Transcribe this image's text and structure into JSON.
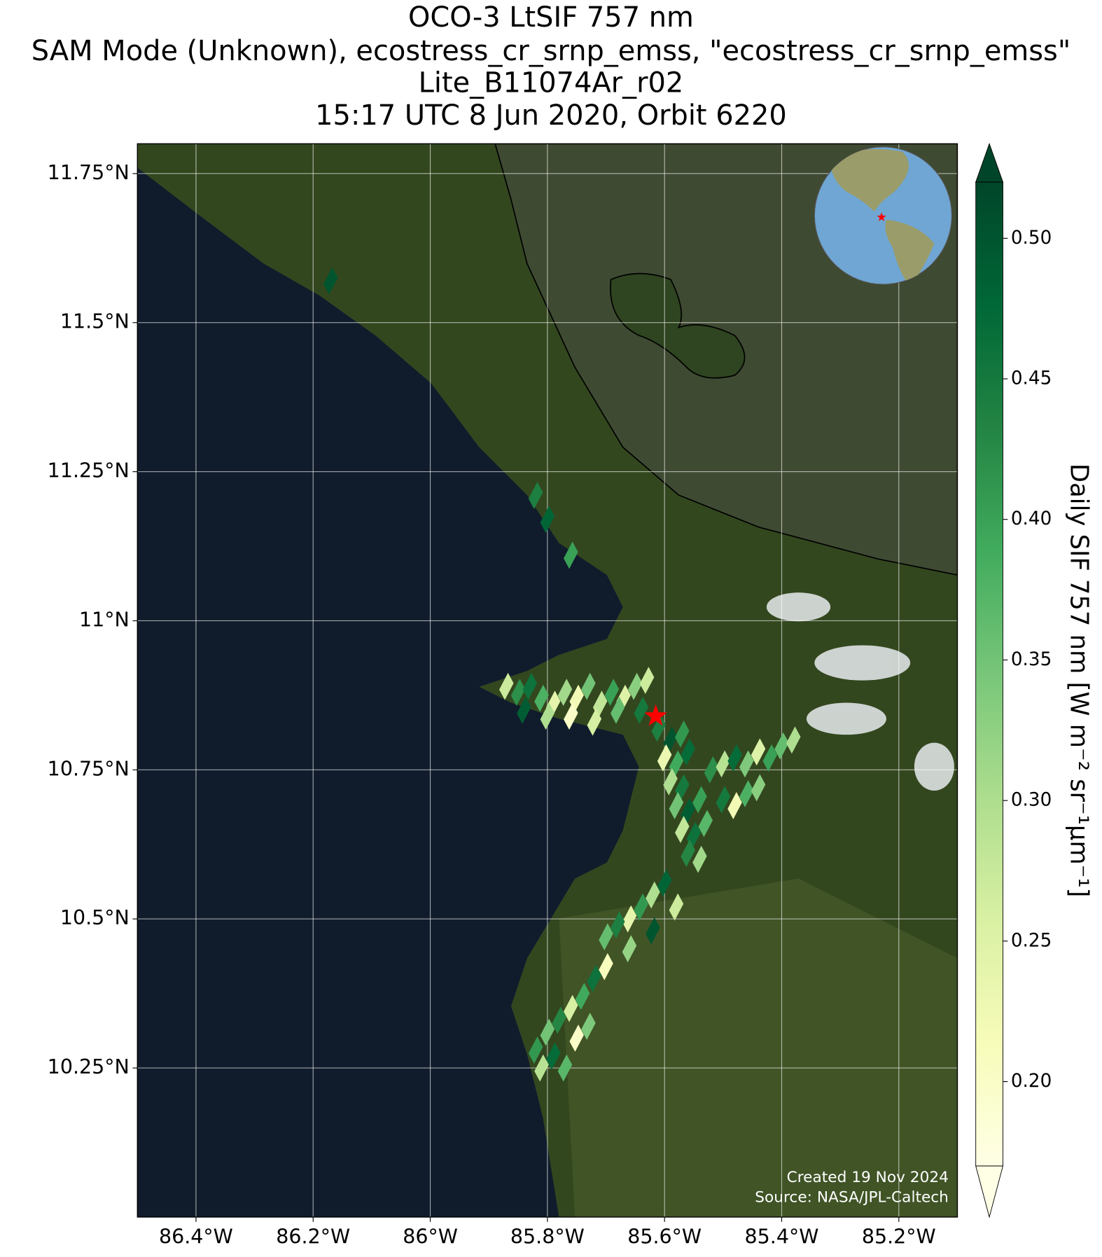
{
  "chart_data": {
    "type": "map",
    "title": [
      "OCO-3 LtSIF 757 nm",
      "SAM Mode (Unknown), ecostress_cr_srnp_emss, \"ecostress_cr_srnp_emss\"",
      "Lite_B11074Ar_r02",
      "15:17 UTC 8 Jun 2020, Orbit 6220"
    ],
    "xlim": [
      -86.5,
      -85.1
    ],
    "ylim": [
      10.0,
      11.8
    ],
    "xticks": [
      {
        "value": -86.4,
        "label": "86.4°W"
      },
      {
        "value": -86.2,
        "label": "86.2°W"
      },
      {
        "value": -86.0,
        "label": "86°W"
      },
      {
        "value": -85.8,
        "label": "85.8°W"
      },
      {
        "value": -85.6,
        "label": "85.6°W"
      },
      {
        "value": -85.4,
        "label": "85.4°W"
      },
      {
        "value": -85.2,
        "label": "85.2°W"
      }
    ],
    "yticks": [
      {
        "value": 10.25,
        "label": "10.25°N"
      },
      {
        "value": 10.5,
        "label": "10.5°N"
      },
      {
        "value": 10.75,
        "label": "10.75°N"
      },
      {
        "value": 11.0,
        "label": "11°N"
      },
      {
        "value": 11.25,
        "label": "11.25°N"
      },
      {
        "value": 11.5,
        "label": "11.5°N"
      },
      {
        "value": 11.75,
        "label": "11.75°N"
      }
    ],
    "grid": true,
    "colorbar_label": "Daily SIF 757 nm [W m⁻² sr⁻¹µm⁻¹]",
    "clim": [
      0.17,
      0.52
    ],
    "cticks": [
      {
        "value": 0.2,
        "label": "0.20"
      },
      {
        "value": 0.25,
        "label": "0.25"
      },
      {
        "value": 0.3,
        "label": "0.30"
      },
      {
        "value": 0.35,
        "label": "0.35"
      },
      {
        "value": 0.4,
        "label": "0.40"
      },
      {
        "value": 0.45,
        "label": "0.45"
      },
      {
        "value": 0.5,
        "label": "0.50"
      }
    ],
    "colormap": [
      "#ffffe5",
      "#f7fcb9",
      "#d9f0a3",
      "#addd8e",
      "#78c679",
      "#41ab5d",
      "#238443",
      "#006837",
      "#004529"
    ],
    "target": [
      -85.615,
      10.84
    ],
    "notes": [
      "Created 19 Nov 2024",
      "Source: NASA/JPL-Caltech"
    ],
    "points": [
      [
        -85.87,
        10.89,
        0.27
      ],
      [
        -85.85,
        10.88,
        0.42
      ],
      [
        -85.83,
        10.89,
        0.46
      ],
      [
        -85.81,
        10.87,
        0.38
      ],
      [
        -85.79,
        10.86,
        0.24
      ],
      [
        -85.77,
        10.88,
        0.31
      ],
      [
        -85.75,
        10.87,
        0.22
      ],
      [
        -85.73,
        10.89,
        0.35
      ],
      [
        -85.71,
        10.86,
        0.28
      ],
      [
        -85.69,
        10.88,
        0.4
      ],
      [
        -85.67,
        10.87,
        0.25
      ],
      [
        -85.65,
        10.89,
        0.33
      ],
      [
        -85.63,
        10.9,
        0.27
      ],
      [
        -85.84,
        10.85,
        0.49
      ],
      [
        -85.8,
        10.84,
        0.3
      ],
      [
        -85.76,
        10.84,
        0.2
      ],
      [
        -85.72,
        10.83,
        0.26
      ],
      [
        -85.68,
        10.85,
        0.36
      ],
      [
        -85.64,
        10.85,
        0.45
      ],
      [
        -85.61,
        10.82,
        0.44
      ],
      [
        -85.59,
        10.8,
        0.5
      ],
      [
        -85.57,
        10.81,
        0.41
      ],
      [
        -85.6,
        10.77,
        0.23
      ],
      [
        -85.58,
        10.76,
        0.39
      ],
      [
        -85.56,
        10.78,
        0.47
      ],
      [
        -85.59,
        10.73,
        0.3
      ],
      [
        -85.57,
        10.72,
        0.45
      ],
      [
        -85.58,
        10.69,
        0.35
      ],
      [
        -85.56,
        10.68,
        0.49
      ],
      [
        -85.54,
        10.7,
        0.4
      ],
      [
        -85.57,
        10.65,
        0.28
      ],
      [
        -85.55,
        10.64,
        0.46
      ],
      [
        -85.53,
        10.66,
        0.37
      ],
      [
        -85.56,
        10.61,
        0.43
      ],
      [
        -85.54,
        10.6,
        0.31
      ],
      [
        -85.52,
        10.75,
        0.42
      ],
      [
        -85.5,
        10.76,
        0.29
      ],
      [
        -85.48,
        10.77,
        0.47
      ],
      [
        -85.46,
        10.76,
        0.34
      ],
      [
        -85.44,
        10.78,
        0.25
      ],
      [
        -85.42,
        10.77,
        0.4
      ],
      [
        -85.4,
        10.79,
        0.36
      ],
      [
        -85.38,
        10.8,
        0.3
      ],
      [
        -85.5,
        10.7,
        0.45
      ],
      [
        -85.48,
        10.69,
        0.22
      ],
      [
        -85.46,
        10.71,
        0.38
      ],
      [
        -85.44,
        10.72,
        0.33
      ],
      [
        -85.6,
        10.56,
        0.48
      ],
      [
        -85.62,
        10.54,
        0.3
      ],
      [
        -85.64,
        10.52,
        0.41
      ],
      [
        -85.66,
        10.5,
        0.24
      ],
      [
        -85.68,
        10.49,
        0.44
      ],
      [
        -85.7,
        10.47,
        0.36
      ],
      [
        -85.58,
        10.52,
        0.27
      ],
      [
        -85.62,
        10.48,
        0.5
      ],
      [
        -85.66,
        10.45,
        0.32
      ],
      [
        -85.7,
        10.42,
        0.21
      ],
      [
        -85.72,
        10.4,
        0.46
      ],
      [
        -85.74,
        10.37,
        0.39
      ],
      [
        -85.76,
        10.35,
        0.26
      ],
      [
        -85.78,
        10.33,
        0.43
      ],
      [
        -85.8,
        10.31,
        0.35
      ],
      [
        -85.82,
        10.28,
        0.41
      ],
      [
        -85.75,
        10.3,
        0.2
      ],
      [
        -85.79,
        10.27,
        0.47
      ],
      [
        -85.81,
        10.25,
        0.29
      ],
      [
        -85.77,
        10.25,
        0.37
      ],
      [
        -85.73,
        10.32,
        0.34
      ],
      [
        -86.17,
        11.57,
        0.5
      ],
      [
        -85.82,
        11.21,
        0.44
      ],
      [
        -85.8,
        11.17,
        0.48
      ],
      [
        -85.76,
        11.11,
        0.4
      ]
    ]
  }
}
